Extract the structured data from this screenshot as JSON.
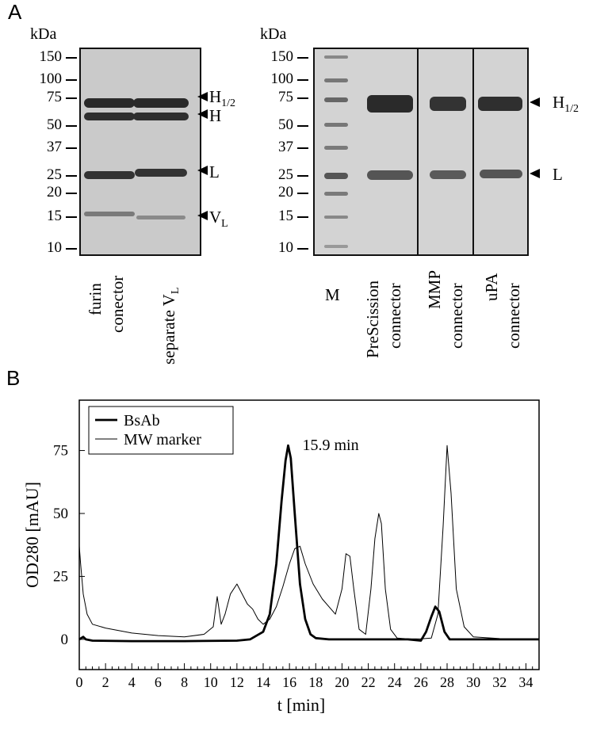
{
  "panel_a": {
    "letter": "A",
    "gel1": {
      "unit": "kDa",
      "mw_ladder": [
        "150",
        "100",
        "75",
        "50",
        "37",
        "25",
        "20",
        "15",
        "10"
      ],
      "markers": {
        "h12_main": "H",
        "h12_sub": "1/2",
        "h": "H",
        "l": "L",
        "vl_main": "V",
        "vl_sub": "L"
      },
      "lanes": [
        {
          "line1": "furin",
          "line2": "conector"
        },
        {
          "line1": "separate V",
          "line1_sub": "L"
        }
      ]
    },
    "gel2": {
      "unit": "kDa",
      "mw_ladder": [
        "150",
        "100",
        "75",
        "50",
        "37",
        "25",
        "20",
        "15",
        "10"
      ],
      "markers": {
        "h12_main": "H",
        "h12_sub": "1/2",
        "l": "L"
      },
      "lanes": [
        {
          "line1": "M"
        },
        {
          "line1": "PreScission",
          "line2": "connector"
        },
        {
          "line1": "MMP",
          "line2": "connector"
        },
        {
          "line1": "uPA",
          "line2": "connector"
        }
      ]
    }
  },
  "panel_b": {
    "letter": "B",
    "chart_data": {
      "type": "line",
      "xlabel": "t [min]",
      "ylabel": "OD280 [mAU]",
      "xlim": [
        0,
        35
      ],
      "ylim": [
        -12,
        95
      ],
      "xticks": [
        0,
        2,
        4,
        6,
        8,
        10,
        12,
        14,
        16,
        18,
        20,
        22,
        24,
        26,
        28,
        30,
        32,
        34
      ],
      "yticks": [
        0,
        25,
        50,
        75
      ],
      "legend_position": "top-left",
      "annotation": {
        "text": "15.9 min",
        "x": 15.9,
        "y": 77
      },
      "series": [
        {
          "name": "BsAb",
          "line": "thick",
          "x": [
            0,
            0.3,
            0.5,
            1,
            4,
            8,
            12,
            13,
            14,
            14.5,
            15,
            15.4,
            15.7,
            15.9,
            16.1,
            16.4,
            16.8,
            17.2,
            17.6,
            18,
            19,
            22,
            25,
            26,
            26.4,
            26.8,
            27.1,
            27.4,
            27.8,
            28.2,
            29,
            33,
            35
          ],
          "y": [
            0,
            1,
            0,
            -0.5,
            -0.7,
            -0.7,
            -0.5,
            0,
            3,
            10,
            30,
            55,
            71,
            77,
            72,
            50,
            22,
            8,
            2,
            0.5,
            0,
            0,
            0,
            -0.5,
            3,
            9,
            13,
            11,
            3,
            0,
            0,
            0,
            0
          ]
        },
        {
          "name": "MW marker",
          "line": "thin",
          "x": [
            0,
            0.1,
            0.3,
            0.6,
            1,
            2,
            3,
            4,
            6,
            8,
            9.5,
            10.2,
            10.5,
            10.8,
            11.1,
            11.5,
            12.0,
            12.3,
            12.8,
            13.2,
            13.6,
            14.0,
            14.5,
            15.0,
            15.5,
            16.0,
            16.4,
            16.8,
            17.2,
            17.8,
            18.5,
            19.5,
            20.0,
            20.3,
            20.6,
            20.9,
            21.3,
            21.8,
            22.2,
            22.5,
            22.8,
            23.0,
            23.3,
            23.7,
            24.2,
            25,
            26,
            26.8,
            27.3,
            27.7,
            28.0,
            28.3,
            28.7,
            29.3,
            30,
            32,
            35
          ],
          "y": [
            37,
            30,
            18,
            10,
            6,
            4.5,
            3.5,
            2.5,
            1.5,
            1,
            2,
            5,
            17,
            6,
            10,
            18,
            22,
            19,
            14,
            12,
            8,
            6,
            8,
            13,
            21,
            30,
            36,
            37,
            30,
            22,
            16,
            10,
            20,
            34,
            33,
            20,
            4,
            2,
            20,
            40,
            50,
            46,
            20,
            4,
            0.5,
            0.2,
            0.2,
            0.5,
            10,
            45,
            77,
            58,
            20,
            5,
            1,
            0.3,
            0
          ]
        }
      ]
    }
  }
}
